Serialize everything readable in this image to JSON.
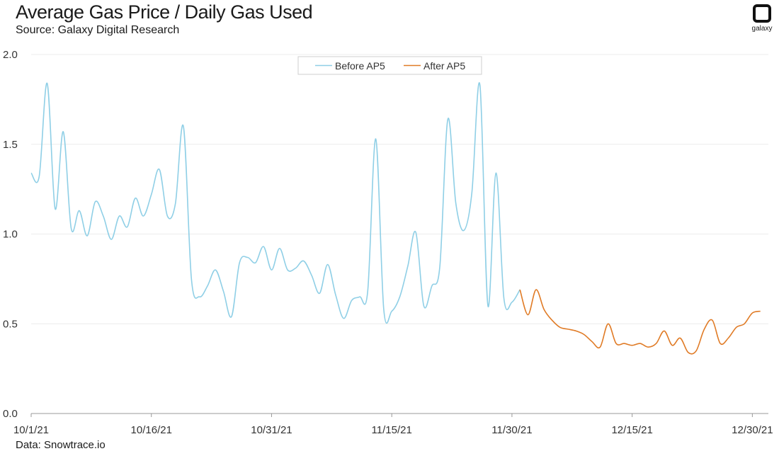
{
  "header": {
    "title": "Average Gas Price / Daily Gas Used",
    "subtitle": "Source: Galaxy Digital Research"
  },
  "footer": {
    "note": "Data: Snowtrace.io"
  },
  "logo": {
    "text": "galaxy",
    "icon": "galaxy-logo-icon"
  },
  "colors": {
    "before": "#8fcfe6",
    "after": "#e07b26",
    "grid": "#ececec",
    "axis": "#999999"
  },
  "chart_data": {
    "type": "line",
    "ylim": [
      0.0,
      2.0
    ],
    "yticks": [
      0.0,
      0.5,
      1.0,
      1.5,
      2.0
    ],
    "ytick_labels": [
      "0.0",
      "0.5",
      "1.0",
      "1.5",
      "2.0"
    ],
    "xlim": [
      "2021-10-01",
      "2022-01-01"
    ],
    "xticks": [
      "2021-10-01",
      "2021-10-16",
      "2021-10-31",
      "2021-11-15",
      "2021-11-30",
      "2021-12-15",
      "2021-12-30"
    ],
    "xtick_labels": [
      "10/1/21",
      "10/16/21",
      "10/31/21",
      "11/15/21",
      "11/30/21",
      "12/15/21",
      "12/30/21"
    ],
    "legend_position": "top-center",
    "grid": "horizontal",
    "series": [
      {
        "name": "Before AP5",
        "color": "#8fcfe6",
        "points": [
          [
            "2021-10-01",
            1.34
          ],
          [
            "2021-10-02",
            1.32
          ],
          [
            "2021-10-03",
            1.84
          ],
          [
            "2021-10-04",
            1.14
          ],
          [
            "2021-10-05",
            1.57
          ],
          [
            "2021-10-06",
            1.03
          ],
          [
            "2021-10-07",
            1.13
          ],
          [
            "2021-10-08",
            0.99
          ],
          [
            "2021-10-09",
            1.18
          ],
          [
            "2021-10-10",
            1.1
          ],
          [
            "2021-10-11",
            0.97
          ],
          [
            "2021-10-12",
            1.1
          ],
          [
            "2021-10-13",
            1.04
          ],
          [
            "2021-10-14",
            1.2
          ],
          [
            "2021-10-15",
            1.1
          ],
          [
            "2021-10-16",
            1.22
          ],
          [
            "2021-10-17",
            1.36
          ],
          [
            "2021-10-18",
            1.1
          ],
          [
            "2021-10-19",
            1.17
          ],
          [
            "2021-10-20",
            1.6
          ],
          [
            "2021-10-21",
            0.75
          ],
          [
            "2021-10-22",
            0.65
          ],
          [
            "2021-10-23",
            0.71
          ],
          [
            "2021-10-24",
            0.8
          ],
          [
            "2021-10-25",
            0.68
          ],
          [
            "2021-10-26",
            0.54
          ],
          [
            "2021-10-27",
            0.84
          ],
          [
            "2021-10-28",
            0.87
          ],
          [
            "2021-10-29",
            0.84
          ],
          [
            "2021-10-30",
            0.93
          ],
          [
            "2021-10-31",
            0.8
          ],
          [
            "2021-11-01",
            0.92
          ],
          [
            "2021-11-02",
            0.8
          ],
          [
            "2021-11-03",
            0.81
          ],
          [
            "2021-11-04",
            0.85
          ],
          [
            "2021-11-05",
            0.77
          ],
          [
            "2021-11-06",
            0.67
          ],
          [
            "2021-11-07",
            0.83
          ],
          [
            "2021-11-08",
            0.66
          ],
          [
            "2021-11-09",
            0.53
          ],
          [
            "2021-11-10",
            0.63
          ],
          [
            "2021-11-11",
            0.65
          ],
          [
            "2021-11-12",
            0.68
          ],
          [
            "2021-11-13",
            1.53
          ],
          [
            "2021-11-14",
            0.58
          ],
          [
            "2021-11-15",
            0.57
          ],
          [
            "2021-11-16",
            0.65
          ],
          [
            "2021-11-17",
            0.82
          ],
          [
            "2021-11-18",
            1.01
          ],
          [
            "2021-11-19",
            0.6
          ],
          [
            "2021-11-20",
            0.71
          ],
          [
            "2021-11-21",
            0.82
          ],
          [
            "2021-11-22",
            1.64
          ],
          [
            "2021-11-23",
            1.17
          ],
          [
            "2021-11-24",
            1.02
          ],
          [
            "2021-11-25",
            1.23
          ],
          [
            "2021-11-26",
            1.83
          ],
          [
            "2021-11-27",
            0.6
          ],
          [
            "2021-11-28",
            1.34
          ],
          [
            "2021-11-29",
            0.64
          ],
          [
            "2021-11-30",
            0.62
          ],
          [
            "2021-12-01",
            0.69
          ]
        ]
      },
      {
        "name": "After AP5",
        "color": "#e07b26",
        "points": [
          [
            "2021-12-01",
            0.69
          ],
          [
            "2021-12-02",
            0.55
          ],
          [
            "2021-12-03",
            0.69
          ],
          [
            "2021-12-04",
            0.58
          ],
          [
            "2021-12-05",
            0.52
          ],
          [
            "2021-12-06",
            0.48
          ],
          [
            "2021-12-07",
            0.47
          ],
          [
            "2021-12-08",
            0.46
          ],
          [
            "2021-12-09",
            0.44
          ],
          [
            "2021-12-10",
            0.4
          ],
          [
            "2021-12-11",
            0.37
          ],
          [
            "2021-12-12",
            0.5
          ],
          [
            "2021-12-13",
            0.39
          ],
          [
            "2021-12-14",
            0.39
          ],
          [
            "2021-12-15",
            0.38
          ],
          [
            "2021-12-16",
            0.39
          ],
          [
            "2021-12-17",
            0.37
          ],
          [
            "2021-12-18",
            0.39
          ],
          [
            "2021-12-19",
            0.46
          ],
          [
            "2021-12-20",
            0.38
          ],
          [
            "2021-12-21",
            0.42
          ],
          [
            "2021-12-22",
            0.34
          ],
          [
            "2021-12-23",
            0.35
          ],
          [
            "2021-12-24",
            0.47
          ],
          [
            "2021-12-25",
            0.52
          ],
          [
            "2021-12-26",
            0.39
          ],
          [
            "2021-12-27",
            0.42
          ],
          [
            "2021-12-28",
            0.48
          ],
          [
            "2021-12-29",
            0.5
          ],
          [
            "2021-12-30",
            0.56
          ],
          [
            "2021-12-31",
            0.57
          ]
        ]
      }
    ]
  }
}
